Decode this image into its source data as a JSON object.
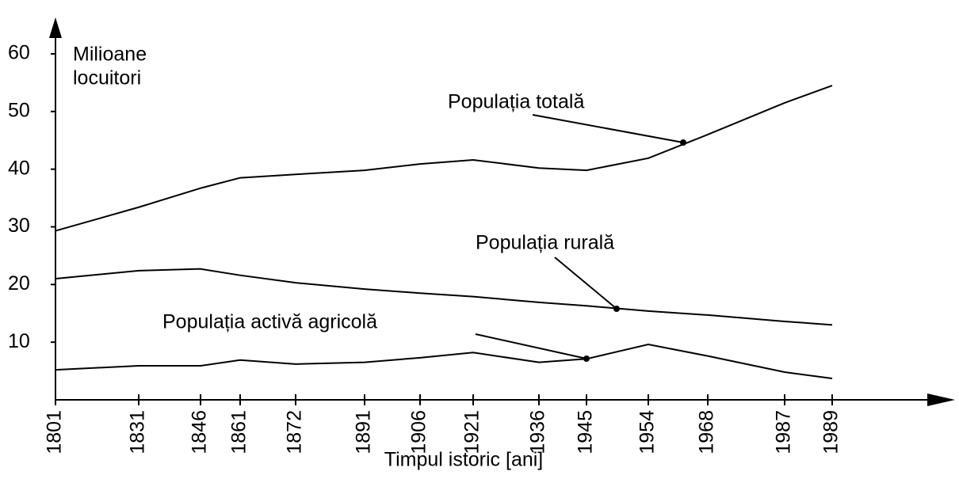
{
  "chart_data": {
    "type": "line",
    "x_label": "Timpul istoric  [ani]",
    "y_label": [
      "Milioane",
      "locuitori"
    ],
    "categories": [
      "1801",
      "1831",
      "1846",
      "1861",
      "1872",
      "1891",
      "1906",
      "1921",
      "1936",
      "1945",
      "1954",
      "1968",
      "1987",
      "1989"
    ],
    "series": [
      {
        "name": "Populația totală",
        "color": "#000000",
        "values": [
          29.3,
          33.4,
          36.7,
          38.5,
          39.1,
          39.8,
          40.9,
          41.6,
          40.2,
          39.8,
          41.9,
          46,
          51.5,
          54.5
        ]
      },
      {
        "name": "Populația rurală",
        "color": "#000000",
        "values": [
          21,
          22.4,
          22.7,
          21.6,
          20.3,
          19.2,
          18.5,
          17.9,
          16.9,
          16.3,
          15.4,
          14.7,
          13.6,
          13
        ]
      },
      {
        "name": "Populația activă agricolă",
        "color": "#000000",
        "values": [
          5.2,
          5.9,
          5.9,
          6.9,
          6.2,
          6.5,
          7.3,
          8.2,
          6.5,
          7.1,
          9.6,
          7.6,
          4.8,
          3.7
        ]
      }
    ],
    "ylim": [
      0,
      60
    ],
    "yticks": [
      10,
      20,
      30,
      40,
      50,
      60
    ],
    "grid": false
  }
}
